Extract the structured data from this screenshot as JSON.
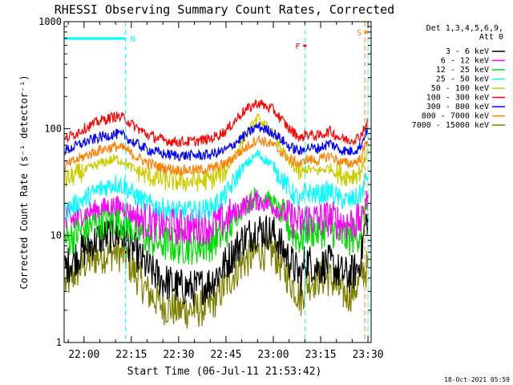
{
  "chart_data": {
    "type": "line",
    "title": "RHESSI Observing Summary Count Rates, Corrected",
    "ylabel": "Corrected Count Rate (s⁻¹ detector⁻¹)",
    "xlabel": "Start Time (06-Jul-11 21:53:42)",
    "footer": "18-Oct-2021 05:59",
    "y_scale": "log",
    "ylim": [
      1,
      1000
    ],
    "y_ticks": [
      {
        "value": 1,
        "label": "1"
      },
      {
        "value": 10,
        "label": "10"
      },
      {
        "value": 100,
        "label": "100"
      },
      {
        "value": 1000,
        "label": "1000"
      }
    ],
    "xlim": [
      "21:53:42",
      "23:31:00"
    ],
    "x_ticks": [
      {
        "t": "22:00",
        "label": "22:00"
      },
      {
        "t": "22:15",
        "label": "22:15"
      },
      {
        "t": "22:30",
        "label": "22:30"
      },
      {
        "t": "22:45",
        "label": "22:45"
      },
      {
        "t": "23:00",
        "label": "23:00"
      },
      {
        "t": "23:15",
        "label": "23:15"
      },
      {
        "t": "23:30",
        "label": "23:30"
      }
    ],
    "legend": {
      "placement": "right",
      "header": [
        "Det 1,3,4,5,6,9,",
        "Att 0"
      ],
      "entries": [
        {
          "label": "3 - 6 keV",
          "color": "#000000"
        },
        {
          "label": "6 - 12 keV",
          "color": "#ff00ff"
        },
        {
          "label": "12 - 25 keV",
          "color": "#00dd00"
        },
        {
          "label": "25 - 50 keV",
          "color": "#00ffff"
        },
        {
          "label": "50 - 100 keV",
          "color": "#cccc00"
        },
        {
          "label": "100 - 300 keV",
          "color": "#ff0000"
        },
        {
          "label": "300 - 800 keV",
          "color": "#0000ff"
        },
        {
          "label": "800 - 7000 keV",
          "color": "#ff7f00"
        },
        {
          "label": "7000 - 15000 keV",
          "color": "#808000"
        }
      ]
    },
    "flags": [
      {
        "label": "N",
        "color": "#00ffff",
        "start": "21:53:42",
        "end": "22:13:10"
      },
      {
        "label": "F",
        "color": "#ff0000",
        "start": "23:09:30",
        "end": "23:10:30"
      },
      {
        "label": "S",
        "color": "#ff7f00",
        "start": "23:29:00",
        "end": "23:30:00"
      }
    ],
    "vlines": [
      {
        "t": "22:13:10",
        "color": "#00ffff"
      },
      {
        "t": "23:10:00",
        "color": "#00ffff"
      },
      {
        "t": "23:29:00",
        "color": "#ff7f00"
      },
      {
        "t": "23:30:00",
        "color": "#00ffff"
      }
    ],
    "series": [
      {
        "name": "7000 - 15000 keV",
        "color": "#808000",
        "t": [
          "21:54",
          "22:00",
          "22:05",
          "22:10",
          "22:13",
          "22:15",
          "22:20",
          "22:25",
          "22:30",
          "22:35",
          "22:40",
          "22:45",
          "22:50",
          "22:55",
          "23:00",
          "23:05",
          "23:09",
          "23:10",
          "23:14",
          "23:18",
          "23:21",
          "23:24",
          "23:27",
          "23:28",
          "23:30"
        ],
        "y": [
          3.5,
          5.5,
          6.5,
          7,
          6.5,
          5,
          3,
          2.2,
          2,
          2,
          2.2,
          3.5,
          5.5,
          7,
          7,
          4,
          2.5,
          3.5,
          4,
          4,
          3,
          2.8,
          3.5,
          4.5,
          5
        ]
      },
      {
        "name": "3 - 6 keV",
        "color": "#000000",
        "t": [
          "21:54",
          "22:00",
          "22:05",
          "22:10",
          "22:13",
          "22:15",
          "22:20",
          "22:25",
          "22:30",
          "22:35",
          "22:40",
          "22:45",
          "22:50",
          "22:55",
          "23:00",
          "23:05",
          "23:09",
          "23:10",
          "23:14",
          "23:18",
          "23:21",
          "23:24",
          "23:27",
          "23:28",
          "23:29",
          "23:30"
        ],
        "y": [
          5,
          7.5,
          9.5,
          10.5,
          9.5,
          8,
          5,
          3.8,
          3.3,
          3.2,
          3.6,
          5.5,
          9,
          11.5,
          10.5,
          6,
          4,
          6,
          5,
          5.5,
          4.5,
          4.2,
          5,
          7,
          12,
          15
        ]
      },
      {
        "name": "12 - 25 keV",
        "color": "#00dd00",
        "t": [
          "21:54",
          "22:00",
          "22:05",
          "22:10",
          "22:13",
          "22:15",
          "22:20",
          "22:25",
          "22:30",
          "22:35",
          "22:40",
          "22:45",
          "22:50",
          "22:55",
          "23:00",
          "23:05",
          "23:09",
          "23:10",
          "23:14",
          "23:18",
          "23:21",
          "23:24",
          "23:27",
          "23:28",
          "23:29",
          "23:30"
        ],
        "y": [
          9,
          11.5,
          13.5,
          14.5,
          13.5,
          12,
          9.5,
          8.5,
          8,
          8,
          8.5,
          11,
          18,
          24,
          20,
          12,
          9,
          12,
          11,
          12,
          10,
          9.5,
          10.5,
          12,
          17,
          22
        ]
      },
      {
        "name": "6 - 12 keV",
        "color": "#ff00ff",
        "t": [
          "21:54",
          "22:00",
          "22:05",
          "22:10",
          "22:13",
          "22:15",
          "22:20",
          "22:25",
          "22:30",
          "22:35",
          "22:40",
          "22:45",
          "22:50",
          "22:55",
          "23:00",
          "23:05",
          "23:09",
          "23:10",
          "23:14",
          "23:18",
          "23:21",
          "23:24",
          "23:27",
          "23:28",
          "23:29",
          "23:30"
        ],
        "y": [
          13,
          16,
          18,
          19,
          18,
          16,
          13.5,
          12.5,
          12,
          12,
          12.5,
          14,
          18.5,
          21.5,
          19,
          14.5,
          13,
          14.5,
          14,
          14.5,
          13.5,
          13,
          13.5,
          15,
          19,
          23
        ]
      },
      {
        "name": "25 - 50 keV",
        "color": "#00ffff",
        "t": [
          "21:54",
          "22:00",
          "22:05",
          "22:10",
          "22:13",
          "22:15",
          "22:20",
          "22:25",
          "22:30",
          "22:35",
          "22:40",
          "22:45",
          "22:50",
          "22:55",
          "23:00",
          "23:05",
          "23:09",
          "23:10",
          "23:14",
          "23:18",
          "23:21",
          "23:24",
          "23:27",
          "23:28",
          "23:29",
          "23:30"
        ],
        "y": [
          17,
          22,
          27,
          31,
          29,
          25,
          20,
          18,
          17,
          17,
          18,
          24,
          42,
          58,
          45,
          27,
          20,
          26,
          24,
          26,
          22,
          21,
          23,
          25,
          32,
          38
        ]
      },
      {
        "name": "50 - 100 keV",
        "color": "#cccc00",
        "t": [
          "21:54",
          "22:00",
          "22:05",
          "22:10",
          "22:13",
          "22:15",
          "22:20",
          "22:25",
          "22:30",
          "22:35",
          "22:40",
          "22:45",
          "22:50",
          "22:55",
          "23:00",
          "23:05",
          "23:09",
          "23:10",
          "23:14",
          "23:18",
          "23:21",
          "23:24",
          "23:27",
          "23:28",
          "23:29",
          "23:30"
        ],
        "y": [
          33,
          40,
          47,
          52,
          49,
          43,
          36,
          33,
          32,
          32,
          33,
          40,
          75,
          125,
          90,
          48,
          36,
          42,
          40,
          43,
          37,
          36,
          38,
          42,
          52,
          62
        ]
      },
      {
        "name": "800 - 7000 keV",
        "color": "#ff7f00",
        "t": [
          "21:54",
          "22:00",
          "22:05",
          "22:10",
          "22:13",
          "22:15",
          "22:20",
          "22:25",
          "22:30",
          "22:35",
          "22:40",
          "22:45",
          "22:50",
          "22:55",
          "23:00",
          "23:05",
          "23:09",
          "23:10",
          "23:14",
          "23:18",
          "23:21",
          "23:24",
          "23:27",
          "23:28",
          "23:29",
          "23:30"
        ],
        "y": [
          45,
          55,
          63,
          68,
          65,
          58,
          48,
          43,
          41,
          41,
          42,
          47,
          62,
          80,
          70,
          52,
          46,
          52,
          50,
          56,
          49,
          47,
          50,
          55,
          68,
          80
        ]
      },
      {
        "name": "300 - 800 keV",
        "color": "#0000ff",
        "t": [
          "21:54",
          "22:00",
          "22:05",
          "22:10",
          "22:13",
          "22:15",
          "22:20",
          "22:25",
          "22:30",
          "22:35",
          "22:40",
          "22:45",
          "22:50",
          "22:55",
          "23:00",
          "23:05",
          "23:09",
          "23:10",
          "23:14",
          "23:18",
          "23:21",
          "23:24",
          "23:27",
          "23:28",
          "23:29",
          "23:30"
        ],
        "y": [
          62,
          74,
          83,
          89,
          85,
          76,
          64,
          58,
          56,
          56,
          57,
          63,
          82,
          105,
          92,
          68,
          60,
          67,
          65,
          73,
          64,
          61,
          65,
          72,
          88,
          100
        ]
      },
      {
        "name": "100 - 300 keV",
        "color": "#ff0000",
        "t": [
          "21:54",
          "22:00",
          "22:05",
          "22:10",
          "22:13",
          "22:15",
          "22:20",
          "22:25",
          "22:30",
          "22:35",
          "22:40",
          "22:45",
          "22:50",
          "22:55",
          "23:00",
          "23:05",
          "23:09",
          "23:10",
          "23:14",
          "23:18",
          "23:21",
          "23:24",
          "23:27",
          "23:28",
          "23:29",
          "23:30"
        ],
        "y": [
          80,
          100,
          118,
          130,
          125,
          110,
          88,
          78,
          75,
          76,
          80,
          95,
          140,
          175,
          150,
          100,
          80,
          90,
          85,
          95,
          82,
          78,
          82,
          90,
          105,
          112
        ]
      }
    ]
  }
}
